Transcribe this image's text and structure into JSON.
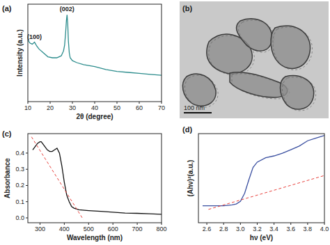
{
  "chart_data": [
    {
      "type": "line",
      "title": "(a)",
      "x_label": "2θ (degree)",
      "y_label": "Intensity (a.u.)",
      "xlim": [
        10,
        70
      ],
      "xticks": [
        10,
        20,
        30,
        40,
        50,
        60,
        70
      ],
      "ylim": [
        0,
        100
      ],
      "tick_labels": "x",
      "annotations": [
        {
          "text": "(100)",
          "x": 13
        },
        {
          "text": "(002)",
          "x": 27.6
        }
      ],
      "series": [
        {
          "color": "#2b8c8c",
          "line_style": "solid",
          "x": [
            10,
            11,
            12,
            13,
            14,
            15,
            17,
            19,
            21,
            23,
            25,
            26,
            26.5,
            27,
            27.3,
            27.6,
            27.9,
            28.2,
            28.6,
            29,
            30,
            32,
            35,
            40,
            45,
            50,
            55,
            60,
            65,
            70
          ],
          "y": [
            63,
            60,
            59,
            61,
            57,
            54,
            50,
            46,
            45,
            45,
            47,
            52,
            58,
            72,
            83,
            89,
            80,
            62,
            50,
            45,
            42,
            40,
            38,
            36,
            33,
            31,
            30,
            29,
            28,
            27
          ]
        }
      ]
    },
    {
      "type": "image",
      "title": "(b)",
      "annotations": [
        {
          "text": "100 nm"
        }
      ]
    },
    {
      "type": "line",
      "title": "(c)",
      "x_label": "Wavelength (nm)",
      "y_label": "Absorbance",
      "xlim": [
        250,
        800
      ],
      "xticks": [
        300,
        400,
        500,
        600,
        700,
        800
      ],
      "ylim": [
        -0.03,
        0.52
      ],
      "yticks": [
        {
          "value": 0,
          "label": "0.0"
        },
        {
          "value": 0.1,
          "label": "0.1"
        },
        {
          "value": 0.2,
          "label": "0.2"
        },
        {
          "value": 0.3,
          "label": "0.3"
        },
        {
          "value": 0.4,
          "label": "0.4"
        }
      ],
      "series": [
        {
          "color": "#111111",
          "line_style": "solid",
          "x": [
            270,
            280,
            290,
            300,
            305,
            310,
            320,
            330,
            340,
            350,
            360,
            370,
            380,
            390,
            400,
            410,
            420,
            430,
            440,
            460,
            500,
            550,
            600,
            650,
            700,
            750,
            800
          ],
          "y": [
            0.42,
            0.44,
            0.46,
            0.47,
            0.47,
            0.46,
            0.44,
            0.42,
            0.41,
            0.41,
            0.42,
            0.43,
            0.4,
            0.32,
            0.22,
            0.14,
            0.1,
            0.07,
            0.06,
            0.05,
            0.045,
            0.04,
            0.035,
            0.03,
            0.028,
            0.025,
            0.022
          ]
        },
        {
          "color": "#e8413c",
          "line_style": "dashed",
          "x": [
            265,
            478
          ],
          "y": [
            0.5,
            -0.01
          ]
        }
      ]
    },
    {
      "type": "line",
      "title": "(d)",
      "x_label": "hν (eV)",
      "y_label": "(Ahν)²(a.u.)",
      "xlim": [
        2.5,
        4.0
      ],
      "xticks": [
        2.6,
        2.8,
        {
          "value": 3,
          "label": "3.0"
        },
        3.2,
        3.4,
        3.6,
        3.8,
        {
          "value": 4,
          "label": "4.0"
        }
      ],
      "ylim": [
        0,
        1
      ],
      "tick_labels": "x",
      "series": [
        {
          "color": "#3a4fa0",
          "line_style": "solid",
          "x": [
            2.55,
            2.7,
            2.8,
            2.9,
            2.95,
            3.0,
            3.05,
            3.1,
            3.15,
            3.2,
            3.3,
            3.4,
            3.5,
            3.6,
            3.7,
            3.8,
            3.9,
            4.0
          ],
          "y": [
            0.19,
            0.19,
            0.19,
            0.2,
            0.21,
            0.24,
            0.33,
            0.48,
            0.62,
            0.68,
            0.73,
            0.75,
            0.78,
            0.82,
            0.86,
            0.92,
            0.95,
            0.98
          ]
        },
        {
          "color": "#e8413c",
          "line_style": "dashed",
          "x": [
            2.62,
            4.0
          ],
          "y": [
            0.15,
            0.53
          ]
        }
      ]
    }
  ]
}
